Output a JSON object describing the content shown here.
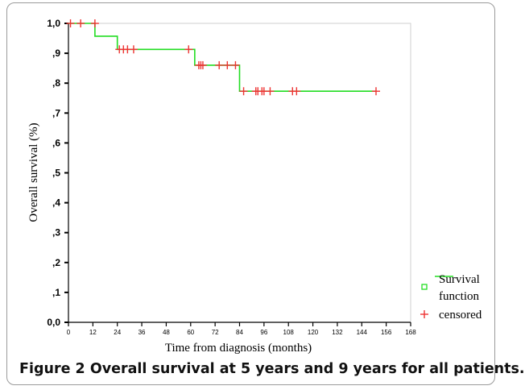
{
  "caption": {
    "label": "Figure 2",
    "text": "Overall survival at 5 years and 9 years for all patients."
  },
  "colors": {
    "survival_line": "#22dd22",
    "censor_mark": "#ee3333"
  },
  "chart_data": {
    "type": "line",
    "title": "",
    "xlabel": "Time from diagnosis (months)",
    "ylabel": "Overall survival (%)",
    "xlim": [
      0,
      168
    ],
    "ylim": [
      0,
      1.0
    ],
    "x_ticks": [
      0,
      12,
      24,
      36,
      48,
      60,
      72,
      84,
      96,
      108,
      120,
      132,
      144,
      156,
      168
    ],
    "y_ticks": [
      {
        "value": 0.0,
        "label": "0,0"
      },
      {
        "value": 0.1,
        "label": ",1"
      },
      {
        "value": 0.2,
        "label": ",2"
      },
      {
        "value": 0.3,
        "label": ",3"
      },
      {
        "value": 0.4,
        "label": ",4"
      },
      {
        "value": 0.5,
        "label": ",5"
      },
      {
        "value": 0.6,
        "label": ",6"
      },
      {
        "value": 0.7,
        "label": ",7"
      },
      {
        "value": 0.8,
        "label": ",8"
      },
      {
        "value": 0.9,
        "label": ",9"
      },
      {
        "value": 1.0,
        "label": "1,0"
      }
    ],
    "series": [
      {
        "name": "Survival function",
        "style": "step",
        "x": [
          0,
          13,
          24,
          62,
          84,
          151
        ],
        "y": [
          1.0,
          0.957,
          0.913,
          0.86,
          0.773,
          0.773
        ]
      },
      {
        "name": "censored",
        "style": "marker",
        "x": [
          1,
          6,
          13,
          25,
          27,
          29,
          32,
          59,
          64,
          65,
          66,
          74,
          78,
          82,
          86,
          92,
          93,
          95,
          96,
          99,
          110,
          112,
          151
        ],
        "y": [
          1.0,
          1.0,
          1.0,
          0.913,
          0.913,
          0.913,
          0.913,
          0.913,
          0.86,
          0.86,
          0.86,
          0.86,
          0.86,
          0.86,
          0.773,
          0.773,
          0.773,
          0.773,
          0.773,
          0.773,
          0.773,
          0.773,
          0.773
        ]
      }
    ],
    "legend": {
      "position": "right",
      "items": [
        {
          "label_lines": [
            "Survival",
            "function"
          ],
          "marker": "square"
        },
        {
          "label_lines": [
            "censored"
          ],
          "marker": "plus"
        }
      ]
    },
    "grid": false
  }
}
